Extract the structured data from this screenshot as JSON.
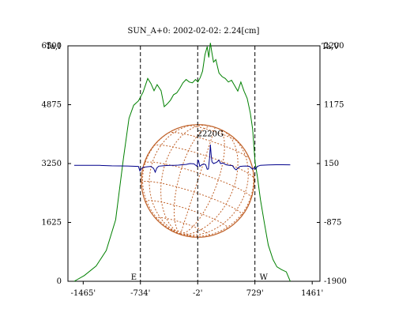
{
  "chart_data": {
    "type": "line",
    "title": "SUN_A+0: 2002-02-02: 2.24[cm]",
    "left_axis_label": "Ta,I",
    "right_axis_label": "Ta,V",
    "x_ticks": [
      "-1465'",
      "-734'",
      "-2'",
      "729'",
      "1461'"
    ],
    "x_tick_values": [
      -1465,
      -734,
      -2,
      729,
      1461
    ],
    "xlim": [
      -1660,
      1560
    ],
    "left_ticks": [
      "6500",
      "4875",
      "3250",
      "1625",
      "0"
    ],
    "left_tick_values": [
      6500,
      4875,
      3250,
      1625,
      0
    ],
    "ylim_left": [
      0,
      6500
    ],
    "right_ticks": [
      "2200",
      "1175",
      "150",
      "-875",
      "-1900"
    ],
    "right_tick_values": [
      2200,
      1175,
      150,
      -875,
      -1900
    ],
    "ylim_right": [
      -1900,
      2200
    ],
    "limb_markers": [
      {
        "label": "E",
        "x": -734
      },
      {
        "label": "",
        "x": -2
      },
      {
        "label": "W",
        "x": 729
      }
    ],
    "annotations": [
      {
        "text": "2220G",
        "x": 160,
        "y_left": 4000
      }
    ],
    "disk": {
      "center_x": -2,
      "radius": 720
    },
    "series": [
      {
        "axis": "left",
        "color": "#008000",
        "points": [
          [
            -1580,
            0
          ],
          [
            -1450,
            160
          ],
          [
            -1300,
            420
          ],
          [
            -1170,
            850
          ],
          [
            -1050,
            1700
          ],
          [
            -950,
            3400
          ],
          [
            -880,
            4500
          ],
          [
            -820,
            4860
          ],
          [
            -760,
            4980
          ],
          [
            -700,
            5220
          ],
          [
            -640,
            5600
          ],
          [
            -600,
            5460
          ],
          [
            -560,
            5260
          ],
          [
            -520,
            5430
          ],
          [
            -470,
            5260
          ],
          [
            -430,
            4820
          ],
          [
            -390,
            4900
          ],
          [
            -350,
            5000
          ],
          [
            -310,
            5150
          ],
          [
            -270,
            5200
          ],
          [
            -230,
            5330
          ],
          [
            -190,
            5480
          ],
          [
            -150,
            5570
          ],
          [
            -110,
            5500
          ],
          [
            -70,
            5480
          ],
          [
            -30,
            5570
          ],
          [
            0,
            5500
          ],
          [
            30,
            5620
          ],
          [
            60,
            5800
          ],
          [
            90,
            6250
          ],
          [
            120,
            6480
          ],
          [
            140,
            6180
          ],
          [
            160,
            6580
          ],
          [
            180,
            6300
          ],
          [
            200,
            6050
          ],
          [
            230,
            6120
          ],
          [
            270,
            5750
          ],
          [
            310,
            5650
          ],
          [
            350,
            5600
          ],
          [
            390,
            5500
          ],
          [
            430,
            5550
          ],
          [
            470,
            5400
          ],
          [
            510,
            5250
          ],
          [
            550,
            5500
          ],
          [
            590,
            5250
          ],
          [
            630,
            5050
          ],
          [
            670,
            4650
          ],
          [
            700,
            4200
          ],
          [
            730,
            3300
          ],
          [
            760,
            2900
          ],
          [
            800,
            2250
          ],
          [
            850,
            1600
          ],
          [
            900,
            1000
          ],
          [
            960,
            600
          ],
          [
            1010,
            400
          ],
          [
            1070,
            320
          ],
          [
            1130,
            260
          ],
          [
            1180,
            0
          ]
        ]
      },
      {
        "axis": "right",
        "color": "#00008b",
        "points": [
          [
            -1580,
            120
          ],
          [
            -1400,
            120
          ],
          [
            -1250,
            118
          ],
          [
            -1100,
            110
          ],
          [
            -900,
            108
          ],
          [
            -760,
            100
          ],
          [
            -740,
            20
          ],
          [
            -720,
            60
          ],
          [
            -700,
            85
          ],
          [
            -670,
            90
          ],
          [
            -640,
            95
          ],
          [
            -600,
            100
          ],
          [
            -565,
            65
          ],
          [
            -545,
            0
          ],
          [
            -525,
            70
          ],
          [
            -500,
            105
          ],
          [
            -450,
            110
          ],
          [
            -400,
            115
          ],
          [
            -350,
            118
          ],
          [
            -300,
            120
          ],
          [
            -250,
            122
          ],
          [
            -200,
            130
          ],
          [
            -150,
            135
          ],
          [
            -100,
            150
          ],
          [
            -50,
            145
          ],
          [
            -10,
            100
          ],
          [
            0,
            210
          ],
          [
            10,
            200
          ],
          [
            25,
            100
          ],
          [
            50,
            130
          ],
          [
            80,
            140
          ],
          [
            100,
            130
          ],
          [
            120,
            50
          ],
          [
            135,
            55
          ],
          [
            150,
            250
          ],
          [
            160,
            480
          ],
          [
            170,
            300
          ],
          [
            180,
            180
          ],
          [
            200,
            150
          ],
          [
            240,
            170
          ],
          [
            270,
            210
          ],
          [
            290,
            150
          ],
          [
            320,
            160
          ],
          [
            360,
            130
          ],
          [
            400,
            120
          ],
          [
            440,
            115
          ],
          [
            470,
            60
          ],
          [
            490,
            40
          ],
          [
            510,
            70
          ],
          [
            540,
            100
          ],
          [
            580,
            105
          ],
          [
            620,
            108
          ],
          [
            660,
            100
          ],
          [
            700,
            50
          ],
          [
            720,
            80
          ],
          [
            740,
            55
          ],
          [
            760,
            100
          ],
          [
            800,
            120
          ],
          [
            900,
            125
          ],
          [
            1000,
            130
          ],
          [
            1080,
            130
          ],
          [
            1180,
            128
          ]
        ]
      }
    ]
  }
}
